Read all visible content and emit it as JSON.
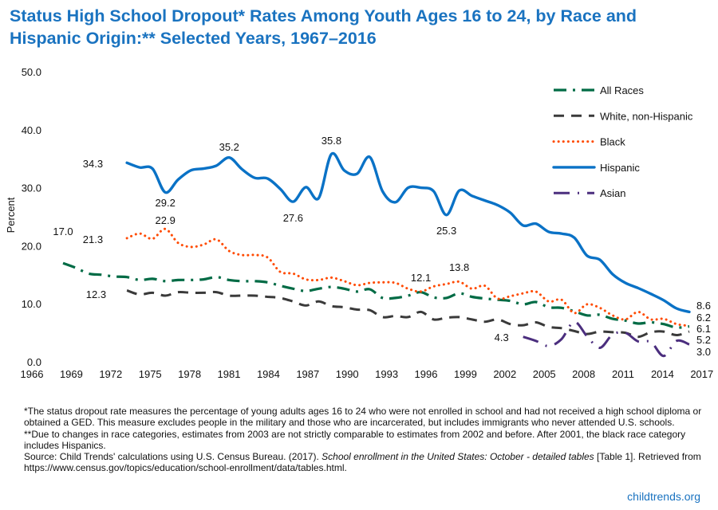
{
  "title": "Status High School Dropout* Rates Among Youth Ages 16 to 24, by Race and Hispanic Origin:** Selected Years, 1967–2016",
  "chart_data": {
    "type": "line",
    "title": "Status High School Dropout* Rates Among Youth Ages 16 to 24, by Race and Hispanic Origin:** Selected Years, 1967–2016",
    "ylabel": "Percent",
    "xlabel": "",
    "ylim": [
      0,
      50
    ],
    "xlim": [
      1966,
      2017
    ],
    "y_ticks": [
      "0.0",
      "10.0",
      "20.0",
      "30.0",
      "40.0",
      "50.0"
    ],
    "x_ticks": [
      "1966",
      "1969",
      "1972",
      "1975",
      "1978",
      "1981",
      "1984",
      "1987",
      "1990",
      "1993",
      "1996",
      "1999",
      "2002",
      "2005",
      "2008",
      "2011",
      "2014",
      "2017"
    ],
    "grid": false,
    "legend_position": "top-right",
    "series": [
      {
        "name": "All Races",
        "color": "#006b45",
        "style": "dash-dot",
        "start_year": 1967,
        "values": [
          17.0,
          16.2,
          15.2,
          15.0,
          14.7,
          14.6,
          14.1,
          14.3,
          13.9,
          14.1,
          14.1,
          14.2,
          14.6,
          14.1,
          13.9,
          13.9,
          13.7,
          13.1,
          12.6,
          12.2,
          12.6,
          12.9,
          12.6,
          12.1,
          12.5,
          11.0,
          11.0,
          11.4,
          12.0,
          11.1,
          11.0,
          11.8,
          11.2,
          10.9,
          10.7,
          10.5,
          9.9,
          10.3,
          9.4,
          9.3,
          8.7,
          8.0,
          8.1,
          7.4,
          7.1,
          6.6,
          6.8,
          6.5,
          5.9,
          6.1
        ]
      },
      {
        "name": "White, non-Hispanic",
        "color": "#3a3a3a",
        "style": "dashed",
        "start_year": 1972,
        "values": [
          12.3,
          11.6,
          11.9,
          11.4,
          12.0,
          11.9,
          11.9,
          12.0,
          11.4,
          11.4,
          11.4,
          11.2,
          11.0,
          10.4,
          9.7,
          10.4,
          9.6,
          9.4,
          9.0,
          8.9,
          7.7,
          7.9,
          7.7,
          8.6,
          7.3,
          7.6,
          7.7,
          7.3,
          6.9,
          7.3,
          6.5,
          6.3,
          6.8,
          6.0,
          5.8,
          5.3,
          4.8,
          5.2,
          5.1,
          5.0,
          4.3,
          5.1,
          5.2,
          4.6,
          5.2
        ]
      },
      {
        "name": "Black",
        "color": "#ff4a00",
        "style": "dotted",
        "start_year": 1972,
        "values": [
          21.3,
          22.1,
          21.2,
          22.9,
          20.5,
          19.8,
          20.2,
          21.1,
          19.1,
          18.4,
          18.4,
          18.0,
          15.5,
          15.2,
          14.2,
          14.1,
          14.5,
          13.9,
          13.2,
          13.6,
          13.7,
          13.6,
          12.6,
          12.1,
          13.0,
          13.4,
          13.8,
          12.6,
          13.1,
          10.9,
          11.3,
          11.8,
          12.1,
          10.4,
          10.7,
          8.4,
          9.9,
          9.3,
          8.0,
          7.3,
          8.6,
          7.3,
          7.4,
          6.5,
          6.2
        ]
      },
      {
        "name": "Hispanic",
        "color": "#0a72c6",
        "style": "solid",
        "start_year": 1972,
        "values": [
          34.3,
          33.5,
          33.3,
          29.2,
          31.4,
          33.0,
          33.3,
          33.8,
          35.2,
          33.2,
          31.7,
          31.6,
          29.8,
          27.6,
          30.1,
          28.2,
          35.8,
          33.0,
          32.4,
          35.3,
          29.4,
          27.5,
          30.0,
          30.0,
          29.4,
          25.3,
          29.5,
          28.6,
          27.8,
          27.0,
          25.7,
          23.5,
          23.8,
          22.4,
          22.1,
          21.4,
          18.3,
          17.6,
          15.1,
          13.6,
          12.7,
          11.7,
          10.6,
          9.2,
          8.6
        ]
      },
      {
        "name": "Asian",
        "color": "#4b2e7e",
        "style": "long-dash-dot",
        "start_year": 2003,
        "values": [
          4.3,
          3.6,
          2.7,
          3.9,
          6.9,
          4.4,
          2.4,
          4.7,
          5.0,
          3.5,
          3.4,
          1.0,
          3.6,
          3.0
        ]
      }
    ],
    "annotations": [
      {
        "series": "All Races",
        "year": 1967,
        "text": "17.0"
      },
      {
        "series": "Hispanic",
        "year": 1972,
        "text": "34.3"
      },
      {
        "series": "Hispanic",
        "year": 1975,
        "text": "29.2"
      },
      {
        "series": "Hispanic",
        "year": 1980,
        "text": "35.2"
      },
      {
        "series": "Hispanic",
        "year": 1985,
        "text": "27.6"
      },
      {
        "series": "Hispanic",
        "year": 1988,
        "text": "35.8"
      },
      {
        "series": "Hispanic",
        "year": 1997,
        "text": "25.3"
      },
      {
        "series": "Black",
        "year": 1972,
        "text": "21.3"
      },
      {
        "series": "Black",
        "year": 1975,
        "text": "22.9"
      },
      {
        "series": "White, non-Hispanic",
        "year": 1972,
        "text": "12.3"
      },
      {
        "series": "Black",
        "year": 1995,
        "text": "12.1"
      },
      {
        "series": "Black",
        "year": 1998,
        "text": "13.8"
      },
      {
        "series": "Asian",
        "year": 2003,
        "text": "4.3"
      },
      {
        "series": "Hispanic",
        "year": 2016,
        "text": "8.6"
      },
      {
        "series": "Black",
        "year": 2016,
        "text": "6.2"
      },
      {
        "series": "All Races",
        "year": 2016,
        "text": "6.1"
      },
      {
        "series": "White, non-Hispanic",
        "year": 2016,
        "text": "5.2"
      },
      {
        "series": "Asian",
        "year": 2016,
        "text": "3.0"
      }
    ]
  },
  "notes": {
    "line1": "*The status dropout rate measures the percentage of young adults ages 16 to 24 who were not enrolled in school and had not received a high school diploma or obtained a GED. This measure excludes people in the military and those who are incarcerated, but includes immigrants who never attended U.S. schools.",
    "line2": "**Due to changes in race categories, estimates from 2003 are not strictly comparable to estimates from 2002 and before. After 2001, the black race category includes Hispanics.",
    "source_prefix": "Source: Child Trends' calculations using U.S. Census Bureau. (2017). ",
    "source_title": "School enrollment in the United States: October - detailed tables",
    "source_suffix": " [Table 1]. Retrieved from https://www.census.gov/topics/education/school-enrollment/data/tables.html."
  },
  "brand": "childtrends.org"
}
